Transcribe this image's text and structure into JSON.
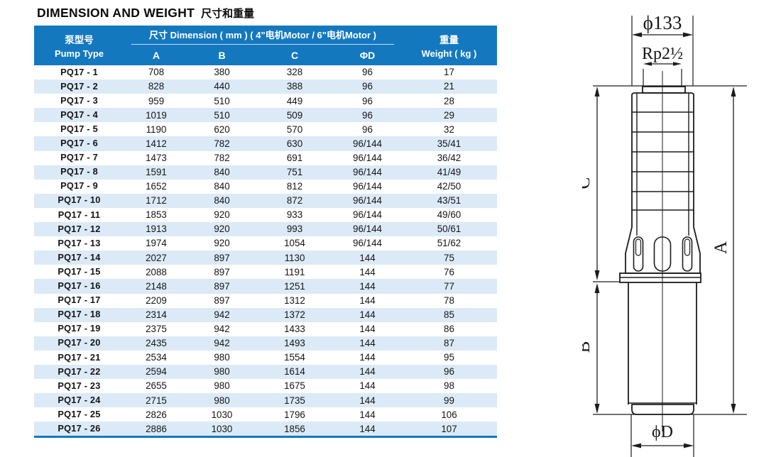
{
  "page": {
    "title_en": "DIMENSION AND WEIGHT",
    "title_zh": "尺寸和重量"
  },
  "table": {
    "header": {
      "pump_type_zh": "泵型号",
      "pump_type_en": "Pump Type",
      "dimension_label": "尺寸 Dimension ( mm ) ( 4\"电机Motor / 6\"电机Motor )",
      "columns": [
        "A",
        "B",
        "C",
        "ΦD"
      ],
      "weight_zh": "重量",
      "weight_en": "Weight ( kg )"
    },
    "rows": [
      [
        "PQ17 - 1",
        "708",
        "380",
        "328",
        "96",
        "17"
      ],
      [
        "PQ17 - 2",
        "828",
        "440",
        "388",
        "96",
        "21"
      ],
      [
        "PQ17 - 3",
        "959",
        "510",
        "449",
        "96",
        "28"
      ],
      [
        "PQ17 - 4",
        "1019",
        "510",
        "509",
        "96",
        "29"
      ],
      [
        "PQ17 - 5",
        "1190",
        "620",
        "570",
        "96",
        "32"
      ],
      [
        "PQ17 - 6",
        "1412",
        "782",
        "630",
        "96/144",
        "35/41"
      ],
      [
        "PQ17 - 7",
        "1473",
        "782",
        "691",
        "96/144",
        "36/42"
      ],
      [
        "PQ17 - 8",
        "1591",
        "840",
        "751",
        "96/144",
        "41/49"
      ],
      [
        "PQ17 - 9",
        "1652",
        "840",
        "812",
        "96/144",
        "42/50"
      ],
      [
        "PQ17 - 10",
        "1712",
        "840",
        "872",
        "96/144",
        "43/51"
      ],
      [
        "PQ17 - 11",
        "1853",
        "920",
        "933",
        "96/144",
        "49/60"
      ],
      [
        "PQ17 - 12",
        "1913",
        "920",
        "993",
        "96/144",
        "50/61"
      ],
      [
        "PQ17 - 13",
        "1974",
        "920",
        "1054",
        "96/144",
        "51/62"
      ],
      [
        "PQ17 - 14",
        "2027",
        "897",
        "1130",
        "144",
        "75"
      ],
      [
        "PQ17 - 15",
        "2088",
        "897",
        "1191",
        "144",
        "76"
      ],
      [
        "PQ17 - 16",
        "2148",
        "897",
        "1251",
        "144",
        "77"
      ],
      [
        "PQ17 - 17",
        "2209",
        "897",
        "1312",
        "144",
        "78"
      ],
      [
        "PQ17 - 18",
        "2314",
        "942",
        "1372",
        "144",
        "85"
      ],
      [
        "PQ17 - 19",
        "2375",
        "942",
        "1433",
        "144",
        "86"
      ],
      [
        "PQ17 - 20",
        "2435",
        "942",
        "1493",
        "144",
        "87"
      ],
      [
        "PQ17 - 21",
        "2534",
        "980",
        "1554",
        "144",
        "95"
      ],
      [
        "PQ17 - 22",
        "2594",
        "980",
        "1614",
        "144",
        "96"
      ],
      [
        "PQ17 - 23",
        "2655",
        "980",
        "1675",
        "144",
        "98"
      ],
      [
        "PQ17 - 24",
        "2715",
        "980",
        "1735",
        "144",
        "99"
      ],
      [
        "PQ17 - 25",
        "2826",
        "1030",
        "1796",
        "144",
        "106"
      ],
      [
        "PQ17 - 26",
        "2886",
        "1030",
        "1856",
        "144",
        "107"
      ]
    ]
  },
  "diagram": {
    "labels": {
      "top_diameter": "ϕ133",
      "thread": "Rp2½",
      "dim_a": "A",
      "dim_b": "B",
      "dim_c": "C",
      "bottom_diameter": "ϕD"
    }
  },
  "colors": {
    "header_bg": "#1478bf",
    "row_alt": "#dceaf7",
    "bottom_rule": "#1478bf",
    "line": "#1c1c1c"
  }
}
